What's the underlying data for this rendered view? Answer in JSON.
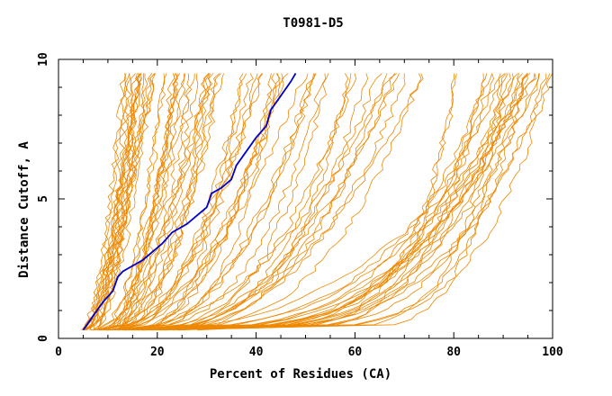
{
  "chart_data": {
    "type": "line",
    "title": "T0981-D5",
    "xlabel": "Percent of Residues (CA)",
    "ylabel": "Distance Cutoff, A",
    "xlim": [
      0,
      100
    ],
    "ylim": [
      0,
      10
    ],
    "x_ticks": [
      0,
      20,
      40,
      60,
      80,
      100
    ],
    "y_ticks": [
      0,
      5,
      10
    ],
    "grid": false,
    "legend": "none",
    "colors": {
      "models": "#ee8800",
      "highlight": "#0000cc"
    },
    "highlight_series": {
      "x": [
        5,
        7,
        9,
        11,
        12,
        13,
        15,
        17,
        19,
        21,
        23,
        26,
        28,
        30,
        31,
        33,
        35,
        36,
        38,
        40,
        42,
        43,
        45,
        47,
        48
      ],
      "y": [
        0.3,
        0.8,
        1.3,
        1.7,
        2.2,
        2.4,
        2.6,
        2.8,
        3.1,
        3.4,
        3.8,
        4.1,
        4.4,
        4.7,
        5.2,
        5.4,
        5.7,
        6.2,
        6.7,
        7.2,
        7.6,
        8.2,
        8.7,
        9.2,
        9.5
      ]
    },
    "model_groups": [
      {
        "x0": [
          4,
          8
        ],
        "x1": [
          13,
          17
        ],
        "p": [
          0.4,
          0.8
        ],
        "n": 10
      },
      {
        "x0": [
          5,
          9
        ],
        "x1": [
          16,
          22
        ],
        "p": [
          0.45,
          0.85
        ],
        "n": 10
      },
      {
        "x0": [
          6,
          12
        ],
        "x1": [
          22,
          30
        ],
        "p": [
          0.4,
          0.7
        ],
        "n": 12
      },
      {
        "x0": [
          7,
          14
        ],
        "x1": [
          30,
          42
        ],
        "p": [
          0.35,
          0.6
        ],
        "n": 12
      },
      {
        "x0": [
          8,
          16
        ],
        "x1": [
          42,
          55
        ],
        "p": [
          0.3,
          0.55
        ],
        "n": 12
      },
      {
        "x0": [
          10,
          20
        ],
        "x1": [
          55,
          75
        ],
        "p": [
          0.25,
          0.5
        ],
        "n": 12
      },
      {
        "x0": [
          8,
          22
        ],
        "x1": [
          78,
          100
        ],
        "p": [
          0.12,
          0.4
        ],
        "n": 18
      },
      {
        "x0": [
          12,
          28
        ],
        "x1": [
          88,
          100
        ],
        "p": [
          0.1,
          0.3
        ],
        "n": 8
      }
    ]
  }
}
